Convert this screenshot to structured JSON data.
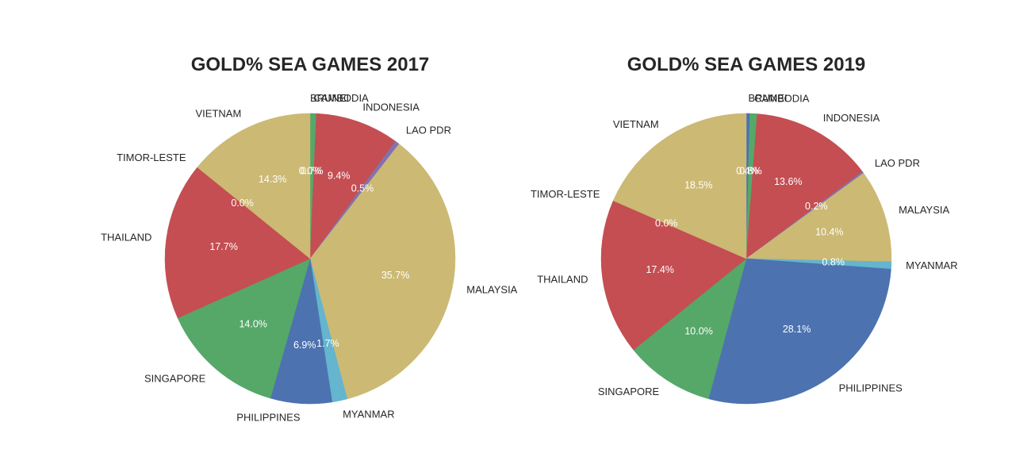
{
  "colors": {
    "background": "#ffffff",
    "text": "#262626",
    "pct_text": "#ffffff"
  },
  "chart_data": [
    {
      "type": "pie",
      "title": "GOLD% SEA GAMES 2017",
      "start_angle_deg": 90,
      "direction": "clockwise",
      "slices": [
        {
          "label": "BRUNEI",
          "value": 0.0,
          "pct_label": "0.0%",
          "color": "#4c72b0"
        },
        {
          "label": "CAMBODIA",
          "value": 0.7,
          "pct_label": "0.7%",
          "color": "#55a868"
        },
        {
          "label": "INDONESIA",
          "value": 9.4,
          "pct_label": "9.4%",
          "color": "#c44e52"
        },
        {
          "label": "LAO PDR",
          "value": 0.5,
          "pct_label": "0.5%",
          "color": "#8172b2"
        },
        {
          "label": "MALAYSIA",
          "value": 35.7,
          "pct_label": "35.7%",
          "color": "#ccb974"
        },
        {
          "label": "MYANMAR",
          "value": 1.7,
          "pct_label": "1.7%",
          "color": "#64b5cd"
        },
        {
          "label": "PHILIPPINES",
          "value": 6.9,
          "pct_label": "6.9%",
          "color": "#4c72b0"
        },
        {
          "label": "SINGAPORE",
          "value": 14.0,
          "pct_label": "14.0%",
          "color": "#55a868"
        },
        {
          "label": "THAILAND",
          "value": 17.7,
          "pct_label": "17.7%",
          "color": "#c44e52"
        },
        {
          "label": "TIMOR-LESTE",
          "value": 0.0,
          "pct_label": "0.0%",
          "color": "#8172b2"
        },
        {
          "label": "VIETNAM",
          "value": 14.3,
          "pct_label": "14.3%",
          "color": "#ccb974"
        }
      ]
    },
    {
      "type": "pie",
      "title": "GOLD% SEA GAMES 2019",
      "start_angle_deg": 90,
      "direction": "clockwise",
      "slices": [
        {
          "label": "BRUNEI",
          "value": 0.4,
          "pct_label": "0.4%",
          "color": "#4c72b0"
        },
        {
          "label": "CAMBODIA",
          "value": 0.8,
          "pct_label": "0.8%",
          "color": "#55a868"
        },
        {
          "label": "INDONESIA",
          "value": 13.6,
          "pct_label": "13.6%",
          "color": "#c44e52"
        },
        {
          "label": "LAO PDR",
          "value": 0.2,
          "pct_label": "0.2%",
          "color": "#8172b2"
        },
        {
          "label": "MALAYSIA",
          "value": 10.4,
          "pct_label": "10.4%",
          "color": "#ccb974"
        },
        {
          "label": "MYANMAR",
          "value": 0.8,
          "pct_label": "0.8%",
          "color": "#64b5cd"
        },
        {
          "label": "PHILIPPINES",
          "value": 28.1,
          "pct_label": "28.1%",
          "color": "#4c72b0"
        },
        {
          "label": "SINGAPORE",
          "value": 10.0,
          "pct_label": "10.0%",
          "color": "#55a868"
        },
        {
          "label": "THAILAND",
          "value": 17.4,
          "pct_label": "17.4%",
          "color": "#c44e52"
        },
        {
          "label": "TIMOR-LESTE",
          "value": 0.0,
          "pct_label": "0.0%",
          "color": "#8172b2"
        },
        {
          "label": "VIETNAM",
          "value": 18.5,
          "pct_label": "18.5%",
          "color": "#ccb974"
        }
      ]
    }
  ]
}
